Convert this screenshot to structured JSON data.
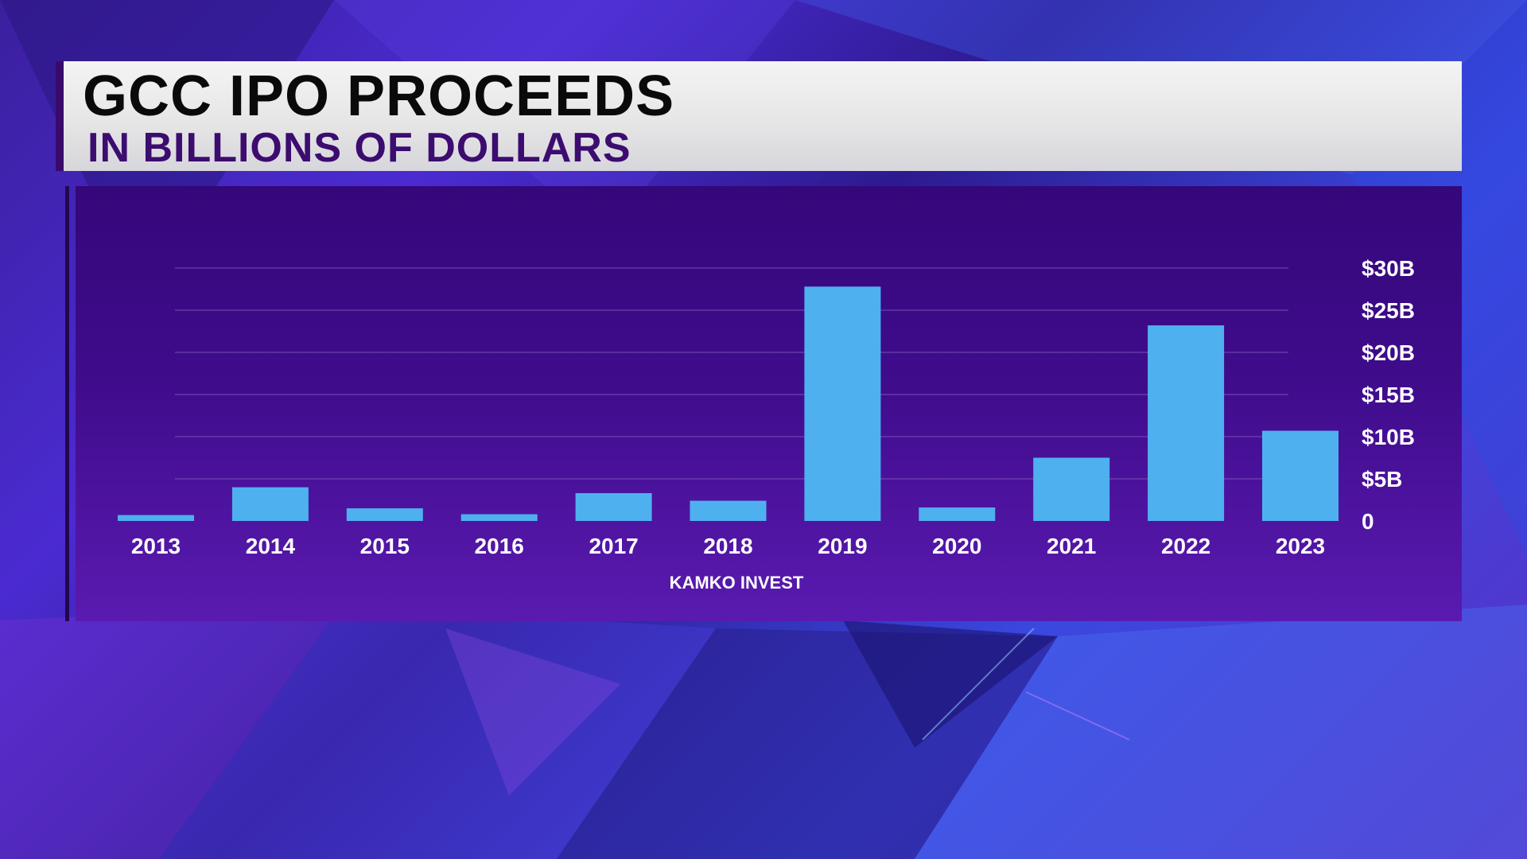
{
  "title": "GCC IPO PROCEEDS",
  "subtitle": "IN BILLIONS OF DOLLARS",
  "source": "KAMKO INVEST",
  "colors": {
    "bar": "#4fb0ef",
    "title_text": "#0a0a0a",
    "subtitle_text": "#3c0c70",
    "panel_top": "#34077a",
    "panel_bottom": "#5a1ab0",
    "gridline": "#8a6fc8"
  },
  "chart_data": {
    "type": "bar",
    "title": "GCC IPO PROCEEDS",
    "subtitle": "IN BILLIONS OF DOLLARS",
    "categories": [
      "2013",
      "2014",
      "2015",
      "2016",
      "2017",
      "2018",
      "2019",
      "2020",
      "2021",
      "2022",
      "2023"
    ],
    "values": [
      0.7,
      4.0,
      1.5,
      0.8,
      3.3,
      2.4,
      27.8,
      1.6,
      7.5,
      23.2,
      10.7
    ],
    "ylim": [
      0,
      30
    ],
    "yticks": [
      0,
      5,
      10,
      15,
      20,
      25,
      30
    ],
    "ytick_labels": [
      "0",
      "$5B",
      "$10B",
      "$15B",
      "$20B",
      "$25B",
      "$30B"
    ],
    "y_axis_side": "right",
    "grid": true,
    "source": "KAMKO INVEST"
  }
}
